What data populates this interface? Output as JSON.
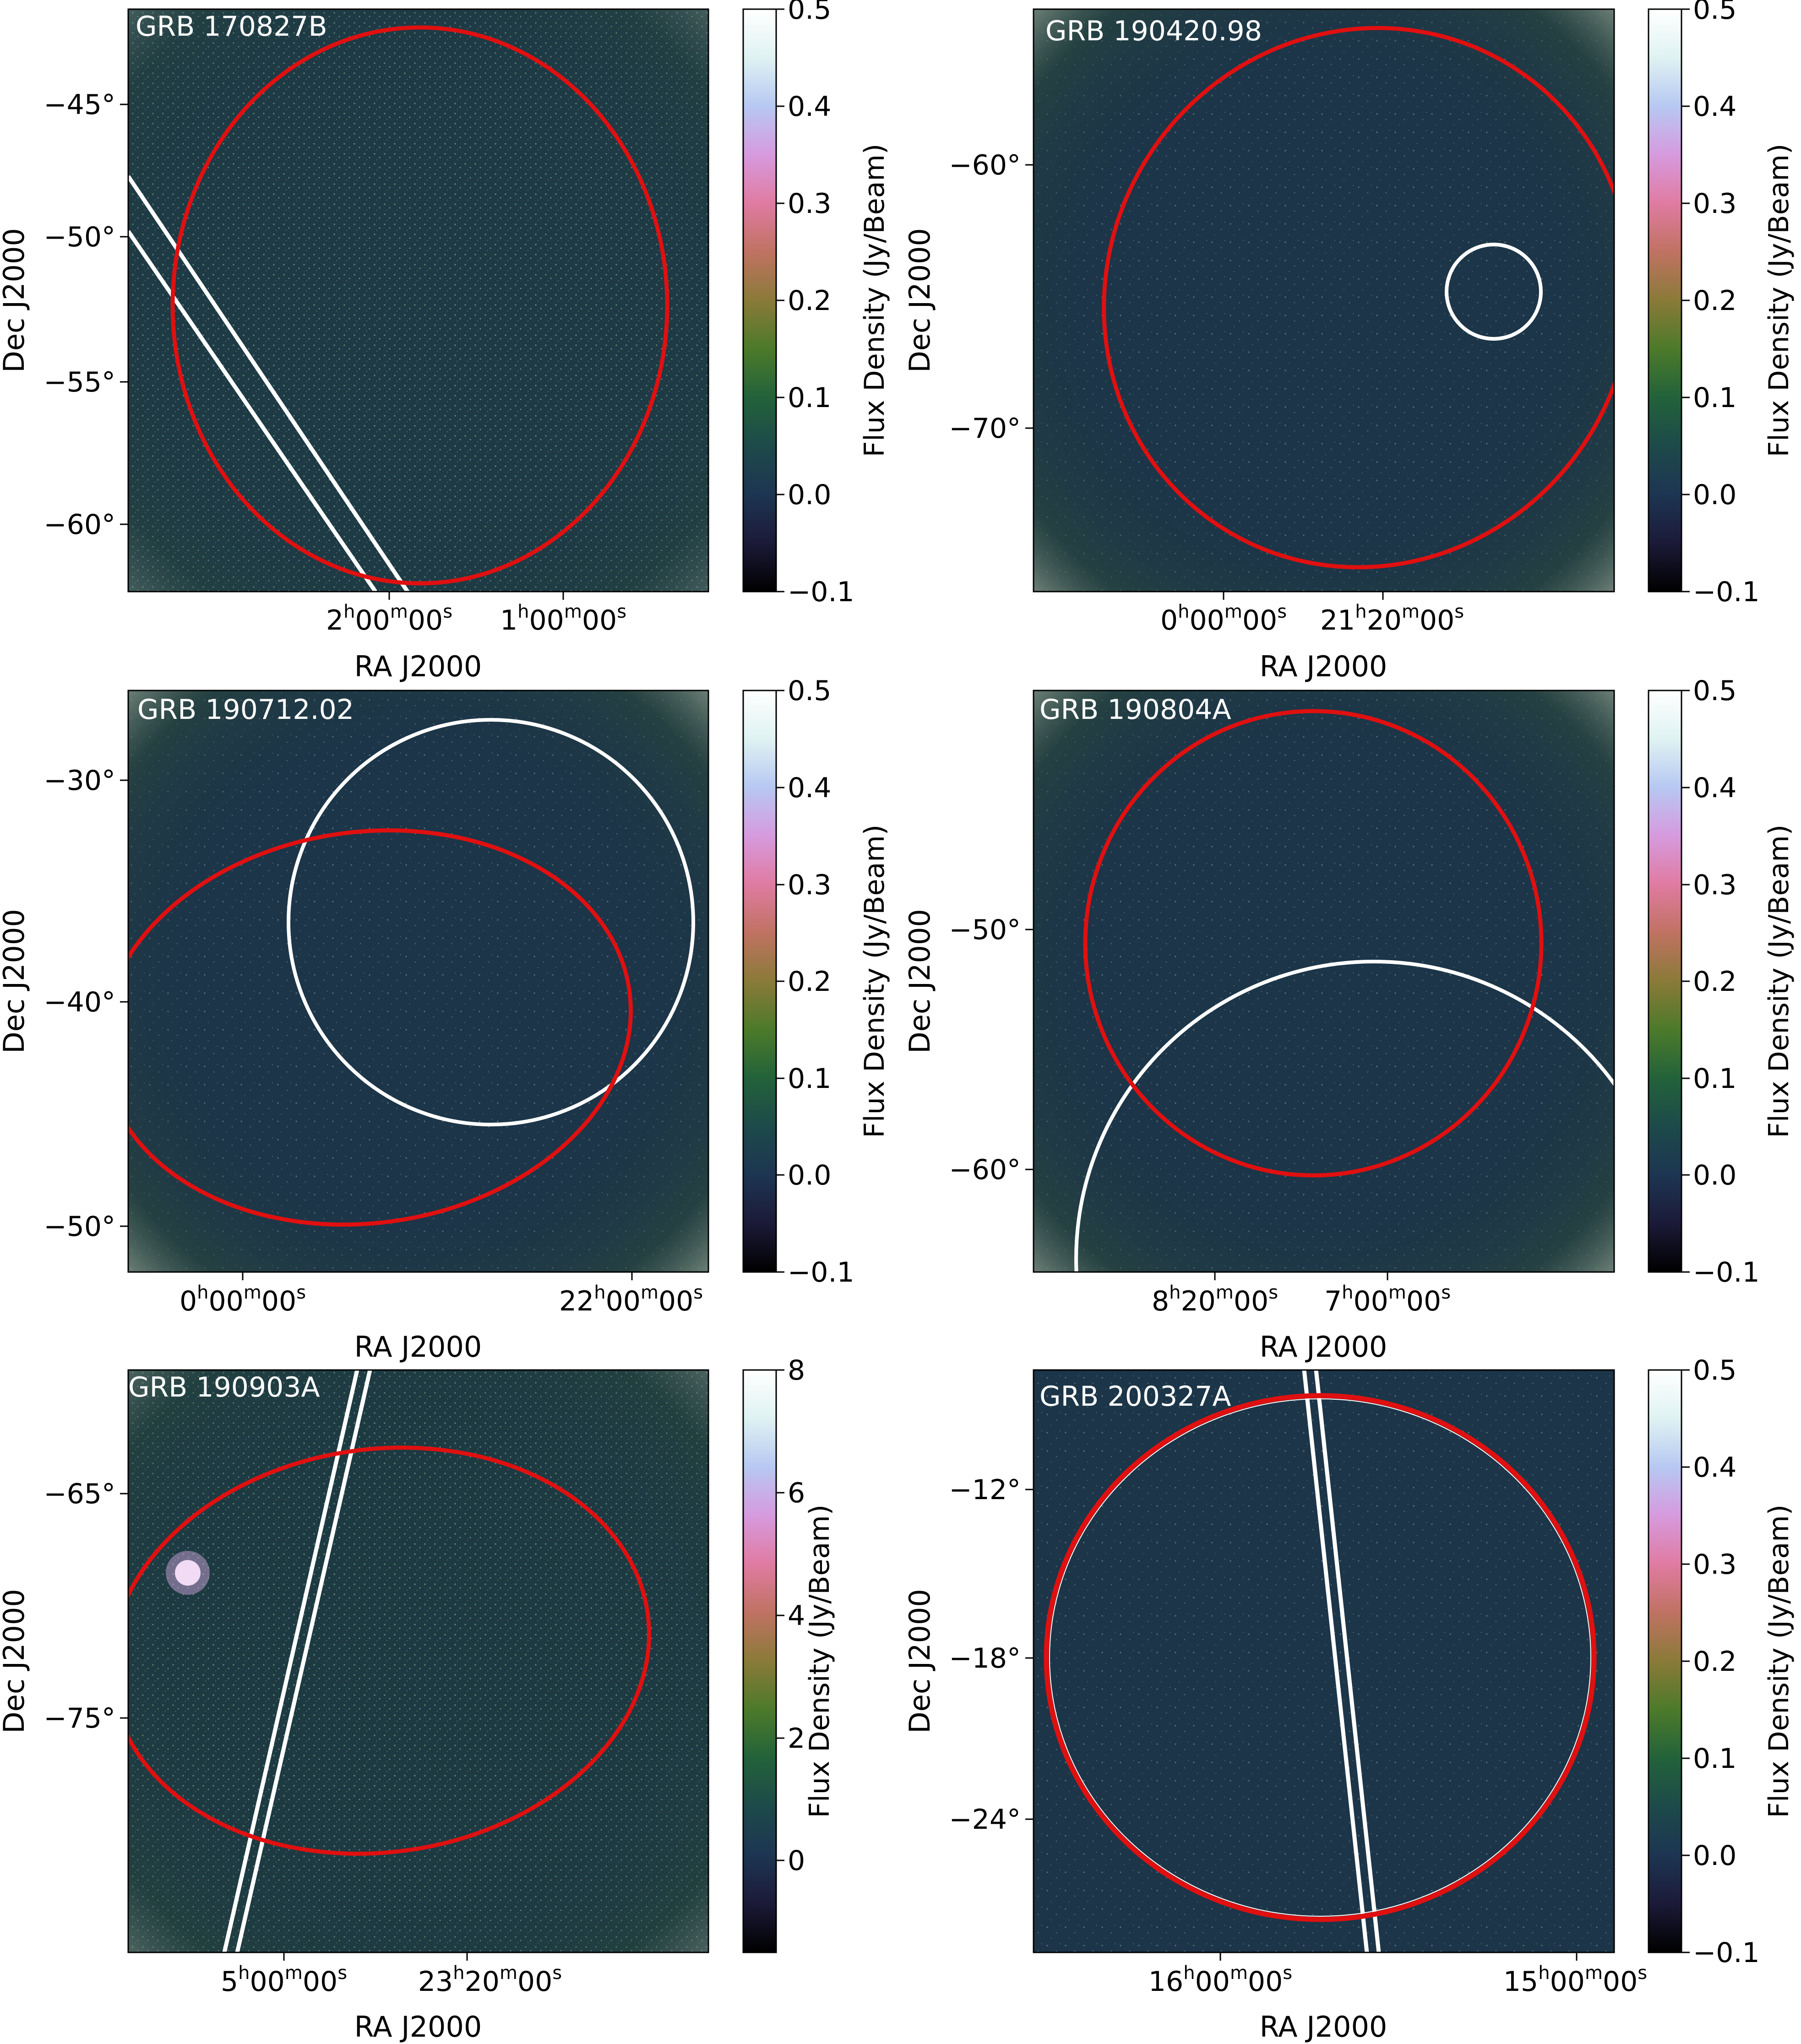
{
  "colorbar_stops": [
    "#000000",
    "#1b1a38",
    "#1d3552",
    "#1d4a4a",
    "#22623a",
    "#4c7a2a",
    "#8a7a38",
    "#c07262",
    "#e07ba2",
    "#d69ade",
    "#b7c8f2",
    "#dff2f2",
    "#ffffff"
  ],
  "colors": {
    "background": "#1c3548",
    "error_ellipse": "#e01010",
    "overlay_lines": "#ffffff"
  },
  "panels": [
    {
      "id": "p1",
      "label": "GRB 170827B",
      "xlabel": "RA J2000",
      "ylabel": "Dec J2000",
      "x_ticks": [
        {
          "label": "2h00m00s",
          "h": "2",
          "m": "00",
          "s": "00"
        },
        {
          "label": "1h00m00s",
          "h": "1",
          "m": "00",
          "s": "00"
        }
      ],
      "y_ticks": [
        "−45°",
        "−50°",
        "−55°",
        "−60°"
      ],
      "colorbar": {
        "label": "Flux Density (Jy/Beam)",
        "ticks": [
          "0.5",
          "0.4",
          "0.3",
          "0.2",
          "0.1",
          "0.0",
          "−0.1"
        ],
        "range": [
          -0.1,
          0.5
        ]
      }
    },
    {
      "id": "p2",
      "label": "GRB 190420.98",
      "xlabel": "RA J2000",
      "ylabel": "Dec J2000",
      "x_ticks": [
        {
          "label": "0h00m00s",
          "h": "0",
          "m": "00",
          "s": "00"
        },
        {
          "label": "21h20m00s",
          "h": "21",
          "m": "20",
          "s": "00"
        }
      ],
      "y_ticks": [
        "−60°",
        "−70°"
      ],
      "colorbar": {
        "label": "Flux Density (Jy/Beam)",
        "ticks": [
          "0.5",
          "0.4",
          "0.3",
          "0.2",
          "0.1",
          "0.0",
          "−0.1"
        ],
        "range": [
          -0.1,
          0.5
        ]
      }
    },
    {
      "id": "p3",
      "label": "GRB 190712.02",
      "xlabel": "RA J2000",
      "ylabel": "Dec J2000",
      "x_ticks": [
        {
          "label": "0h00m00s",
          "h": "0",
          "m": "00",
          "s": "00"
        },
        {
          "label": "22h00m00s",
          "h": "22",
          "m": "00",
          "s": "00"
        }
      ],
      "y_ticks": [
        "−30°",
        "−40°",
        "−50°"
      ],
      "colorbar": {
        "label": "Flux Density (Jy/Beam)",
        "ticks": [
          "0.5",
          "0.4",
          "0.3",
          "0.2",
          "0.1",
          "0.0",
          "−0.1"
        ],
        "range": [
          -0.1,
          0.5
        ]
      }
    },
    {
      "id": "p4",
      "label": "GRB 190804A",
      "xlabel": "RA J2000",
      "ylabel": "Dec J2000",
      "x_ticks": [
        {
          "label": "8h20m00s",
          "h": "8",
          "m": "20",
          "s": "00"
        },
        {
          "label": "7h00m00s",
          "h": "7",
          "m": "00",
          "s": "00"
        }
      ],
      "y_ticks": [
        "−50°",
        "−60°"
      ],
      "colorbar": {
        "label": "Flux Density (Jy/Beam)",
        "ticks": [
          "0.5",
          "0.4",
          "0.3",
          "0.2",
          "0.1",
          "0.0",
          "−0.1"
        ],
        "range": [
          -0.1,
          0.5
        ]
      }
    },
    {
      "id": "p5",
      "label": "GRB 190903A",
      "xlabel": "RA J2000",
      "ylabel": "Dec J2000",
      "x_ticks": [
        {
          "label": "5h00m00s",
          "h": "5",
          "m": "00",
          "s": "00"
        },
        {
          "label": "23h20m00s",
          "h": "23",
          "m": "20",
          "s": "00"
        }
      ],
      "y_ticks": [
        "−65°",
        "−75°"
      ],
      "colorbar": {
        "label": "Flux Density (Jy/Beam)",
        "ticks": [
          "8",
          "6",
          "4",
          "2",
          "0"
        ],
        "range": [
          -1.5,
          8
        ]
      }
    },
    {
      "id": "p6",
      "label": "GRB 200327A",
      "xlabel": "RA J2000",
      "ylabel": "Dec J2000",
      "x_ticks": [
        {
          "label": "16h00m00s",
          "h": "16",
          "m": "00",
          "s": "00"
        },
        {
          "label": "15h00m00s",
          "h": "15",
          "m": "00",
          "s": "00"
        }
      ],
      "y_ticks": [
        "−12°",
        "−18°",
        "−24°"
      ],
      "colorbar": {
        "label": "Flux Density (Jy/Beam)",
        "ticks": [
          "0.5",
          "0.4",
          "0.3",
          "0.2",
          "0.1",
          "0.0",
          "−0.1"
        ],
        "range": [
          -0.1,
          0.5
        ]
      }
    }
  ]
}
